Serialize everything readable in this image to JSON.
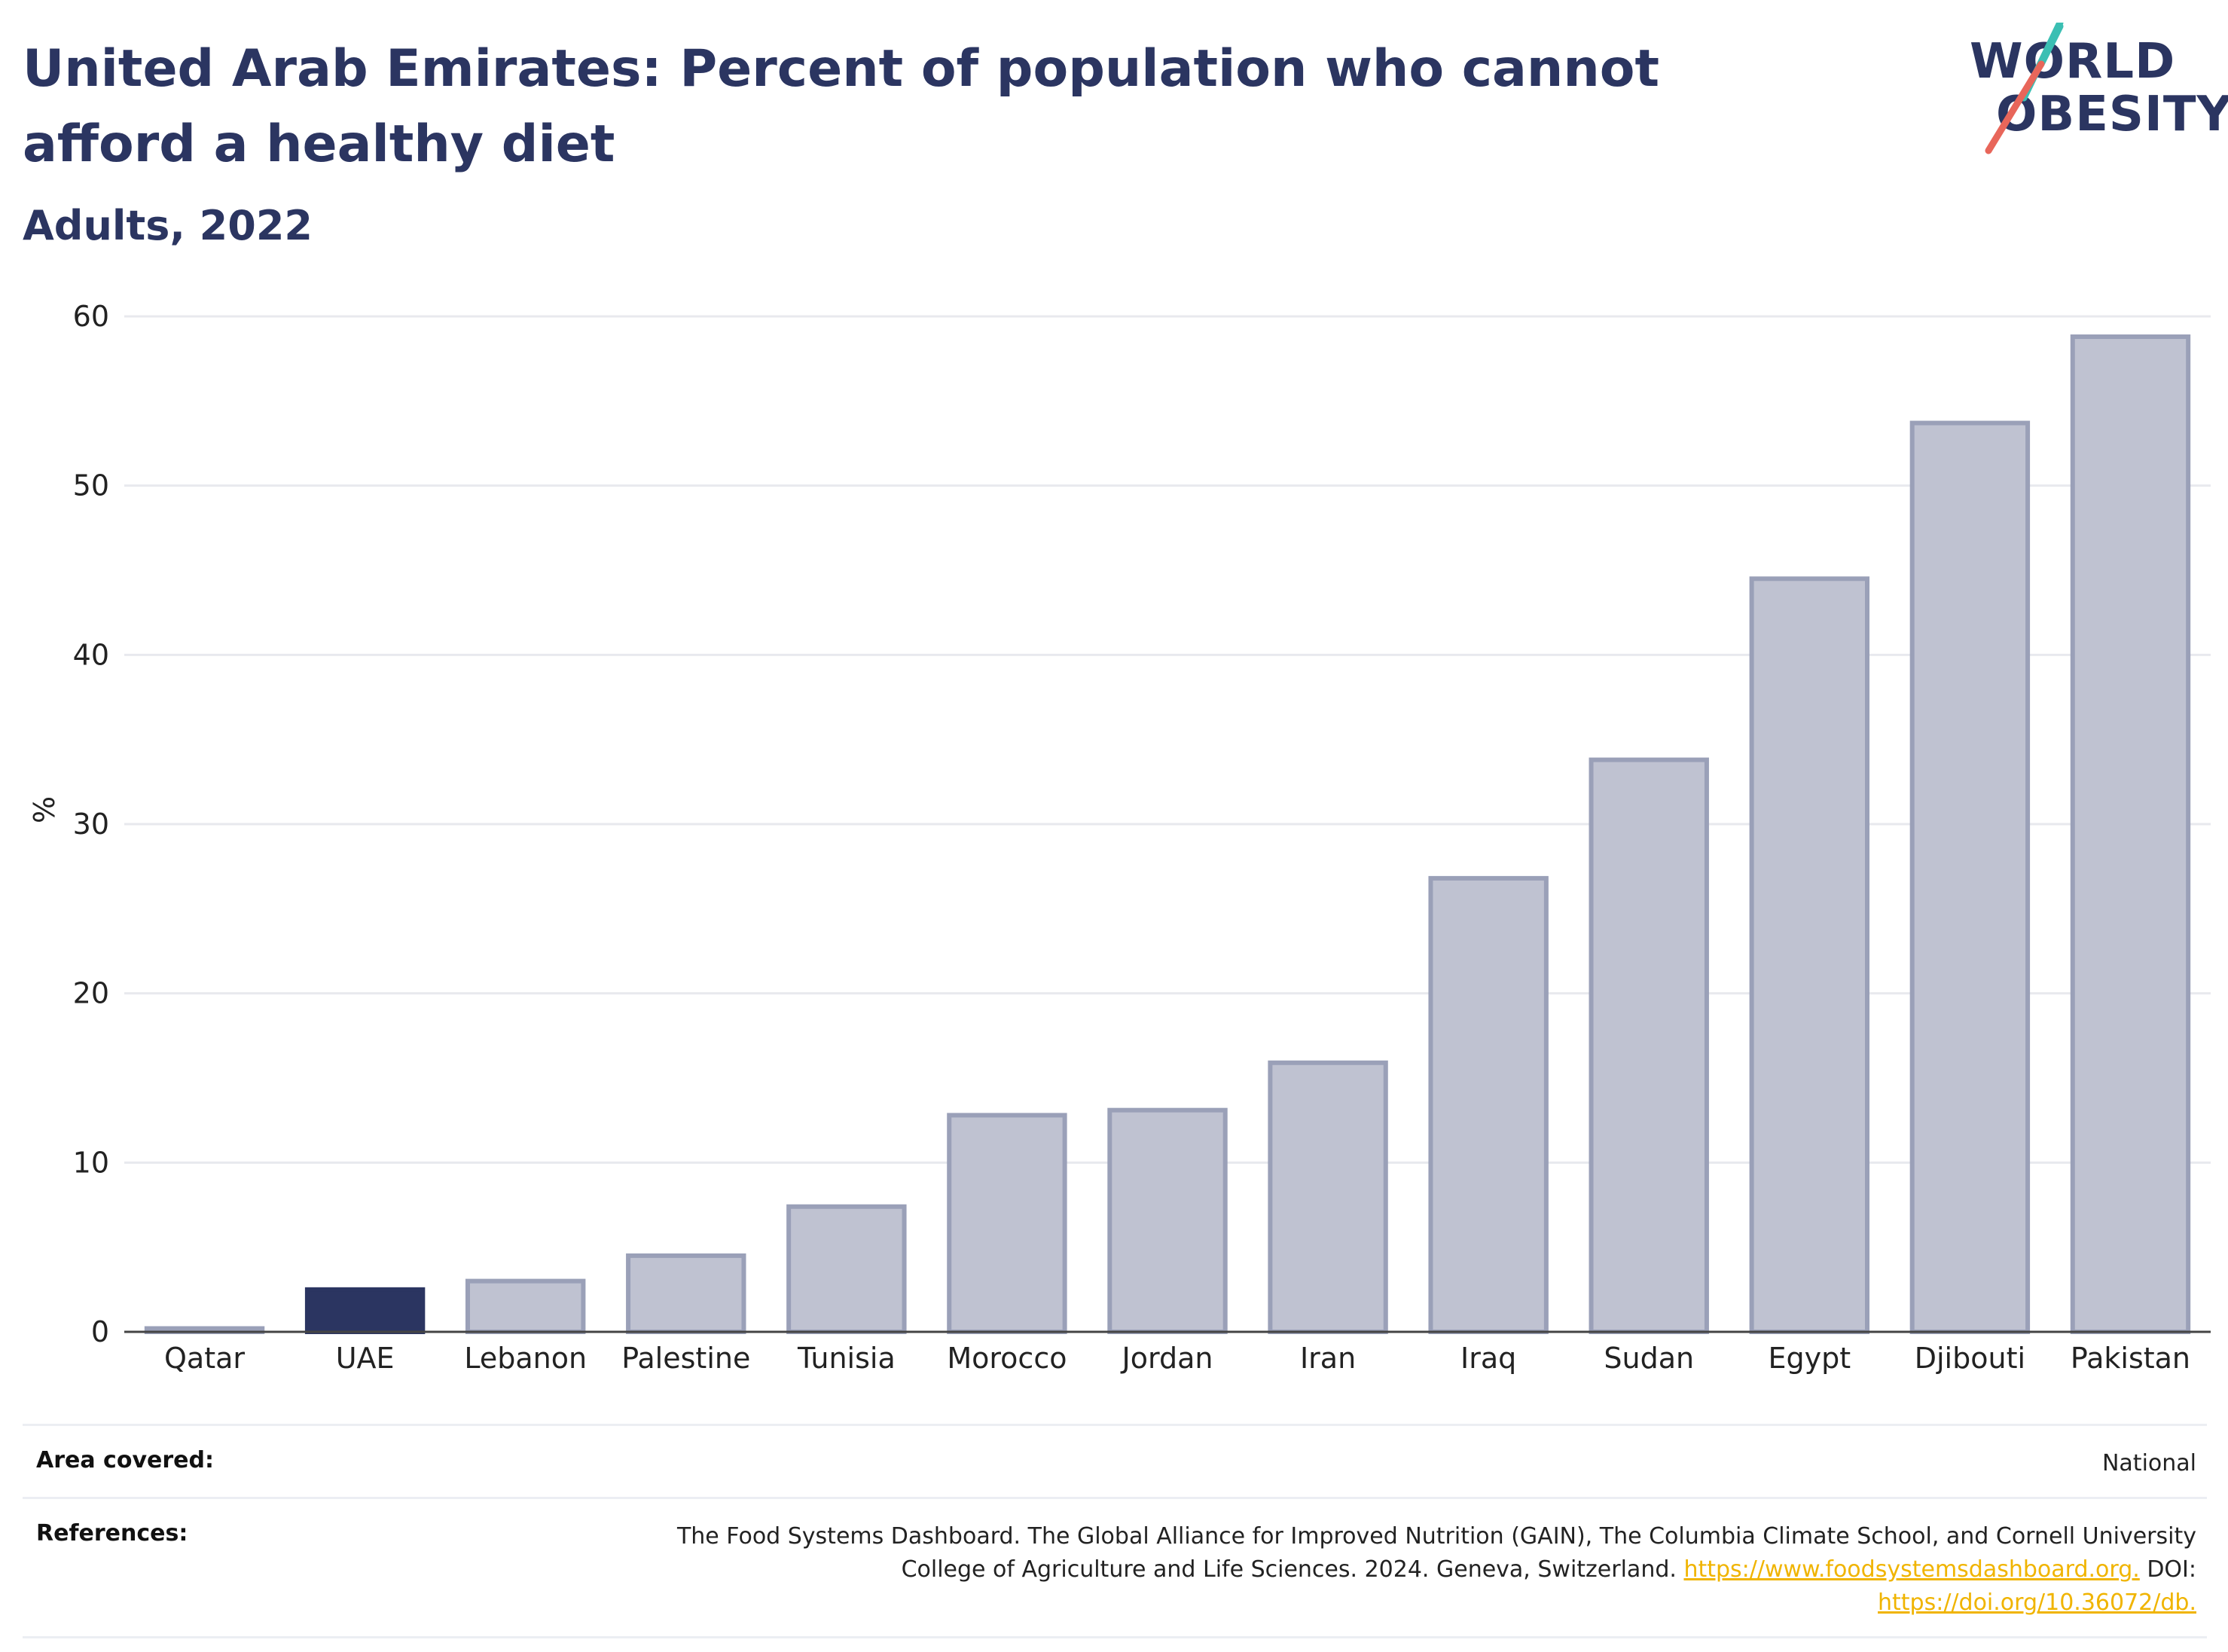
{
  "header": {
    "title": "United Arab Emirates: Percent of population who cannot afford a healthy diet",
    "subtitle": "Adults, 2022"
  },
  "logo": {
    "line1": "WORLD",
    "line2": "OBESITY"
  },
  "colors": {
    "highlight": "#2b3561",
    "bar": "#bfc2d1",
    "bar_border": "#9aa0b8",
    "grid": "#e8e9ee",
    "axis": "#444444"
  },
  "chart_data": {
    "type": "bar",
    "title": "United Arab Emirates: Percent of population who cannot afford a healthy diet",
    "subtitle": "Adults, 2022",
    "xlabel": "",
    "ylabel": "%",
    "ylim": [
      0,
      60
    ],
    "yticks": [
      0,
      10,
      20,
      30,
      40,
      50,
      60
    ],
    "grid": true,
    "categories": [
      "Qatar",
      "UAE",
      "Lebanon",
      "Palestine",
      "Tunisia",
      "Morocco",
      "Jordan",
      "Iran",
      "Iraq",
      "Sudan",
      "Egypt",
      "Djibouti",
      "Pakistan"
    ],
    "values": [
      0.2,
      2.5,
      3.0,
      4.5,
      7.4,
      12.8,
      13.1,
      15.9,
      26.8,
      33.8,
      44.5,
      53.7,
      58.8
    ],
    "highlight": "UAE"
  },
  "footer": {
    "area_label": "Area covered:",
    "area_value": "National",
    "references_label": "References:",
    "ref_text_1": "The Food Systems Dashboard. The Global Alliance for Improved Nutrition (GAIN), The Columbia Climate School, and Cornell University",
    "ref_text_2": "College of Agriculture and Life Sciences. 2024. Geneva, Switzerland.",
    "ref_link_1": "https://www.foodsystemsdashboard.org.",
    "ref_doi": "DOI:",
    "ref_link_2": "https://doi.org/10.36072/db."
  }
}
